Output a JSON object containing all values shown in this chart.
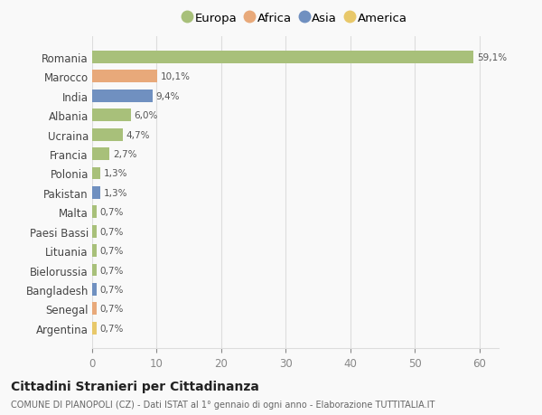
{
  "countries": [
    "Romania",
    "Marocco",
    "India",
    "Albania",
    "Ucraina",
    "Francia",
    "Polonia",
    "Pakistan",
    "Malta",
    "Paesi Bassi",
    "Lituania",
    "Bielorussia",
    "Bangladesh",
    "Senegal",
    "Argentina"
  ],
  "values": [
    59.1,
    10.1,
    9.4,
    6.0,
    4.7,
    2.7,
    1.3,
    1.3,
    0.7,
    0.7,
    0.7,
    0.7,
    0.7,
    0.7,
    0.7
  ],
  "labels": [
    "59,1%",
    "10,1%",
    "9,4%",
    "6,0%",
    "4,7%",
    "2,7%",
    "1,3%",
    "1,3%",
    "0,7%",
    "0,7%",
    "0,7%",
    "0,7%",
    "0,7%",
    "0,7%",
    "0,7%"
  ],
  "continents": [
    "Europa",
    "Africa",
    "Asia",
    "Europa",
    "Europa",
    "Europa",
    "Europa",
    "Asia",
    "Europa",
    "Europa",
    "Europa",
    "Europa",
    "Asia",
    "Africa",
    "America"
  ],
  "continent_colors": {
    "Europa": "#a8c07a",
    "Africa": "#e8a97a",
    "Asia": "#7090c0",
    "America": "#e8c86a"
  },
  "legend_order": [
    "Europa",
    "Africa",
    "Asia",
    "America"
  ],
  "title": "Cittadini Stranieri per Cittadinanza",
  "subtitle": "COMUNE DI PIANOPOLI (CZ) - Dati ISTAT al 1° gennaio di ogni anno - Elaborazione TUTTITALIA.IT",
  "xlim": [
    0,
    63
  ],
  "xticks": [
    0,
    10,
    20,
    30,
    40,
    50,
    60
  ],
  "background_color": "#f9f9f9",
  "grid_color": "#dddddd"
}
